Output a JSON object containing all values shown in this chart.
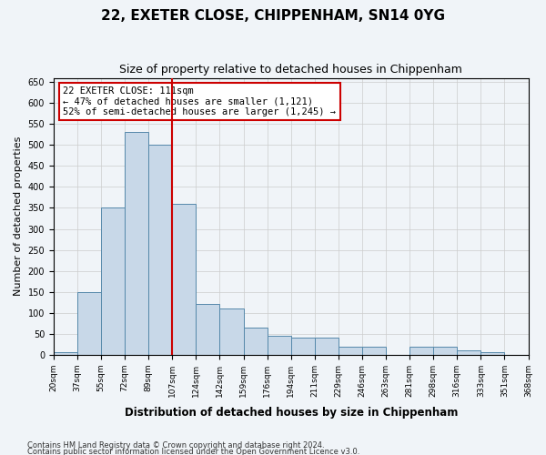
{
  "title_line1": "22, EXETER CLOSE, CHIPPENHAM, SN14 0YG",
  "title_line2": "Size of property relative to detached houses in Chippenham",
  "xlabel": "Distribution of detached houses by size in Chippenham",
  "ylabel": "Number of detached properties",
  "footnote1": "Contains HM Land Registry data © Crown copyright and database right 2024.",
  "footnote2": "Contains public sector information licensed under the Open Government Licence v3.0.",
  "bin_labels": [
    "20sqm",
    "37sqm",
    "55sqm",
    "72sqm",
    "89sqm",
    "107sqm",
    "124sqm",
    "142sqm",
    "159sqm",
    "176sqm",
    "194sqm",
    "211sqm",
    "229sqm",
    "246sqm",
    "263sqm",
    "281sqm",
    "298sqm",
    "316sqm",
    "333sqm",
    "351sqm",
    "368sqm"
  ],
  "bar_values": [
    5,
    150,
    350,
    530,
    500,
    360,
    120,
    110,
    65,
    45,
    40,
    40,
    20,
    20,
    0,
    20,
    20,
    10,
    5,
    0
  ],
  "bar_color": "#c8d8e8",
  "bar_edge_color": "#5588aa",
  "vline_x": 5,
  "vline_color": "#cc0000",
  "ylim": [
    0,
    660
  ],
  "yticks": [
    0,
    50,
    100,
    150,
    200,
    250,
    300,
    350,
    400,
    450,
    500,
    550,
    600,
    650
  ],
  "annotation_title": "22 EXETER CLOSE: 111sqm",
  "annotation_line1": "← 47% of detached houses are smaller (1,121)",
  "annotation_line2": "52% of semi-detached houses are larger (1,245) →",
  "annotation_box_color": "#ffffff",
  "annotation_box_edge": "#cc0000",
  "grid_color": "#cccccc",
  "bg_color": "#f0f4f8"
}
